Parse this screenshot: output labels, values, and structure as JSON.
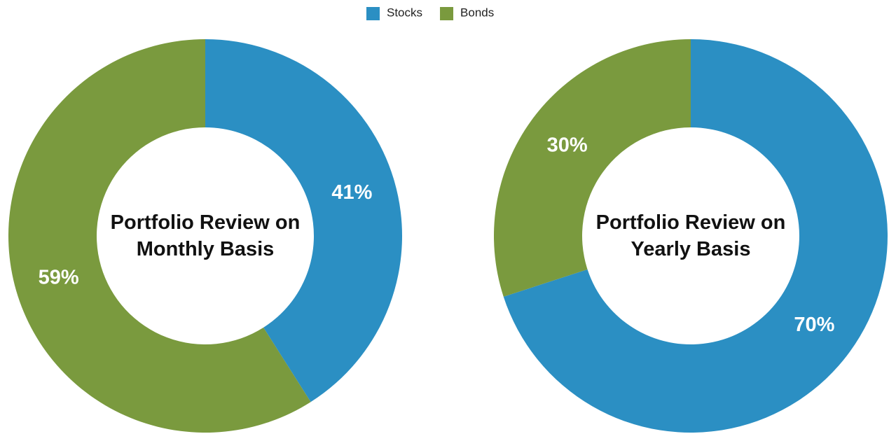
{
  "chart_data": [
    {
      "type": "donut",
      "title": "Portfolio Review on Monthly Basis",
      "categories": [
        "Stocks",
        "Bonds"
      ],
      "values": [
        41,
        59
      ],
      "value_labels": [
        "41%",
        "59%"
      ],
      "colors": [
        "#2b8fc3",
        "#7a9a3e"
      ],
      "legend": "top"
    },
    {
      "type": "donut",
      "title": "Portfolio Review on Yearly Basis",
      "categories": [
        "Stocks",
        "Bonds"
      ],
      "values": [
        70,
        30
      ],
      "value_labels": [
        "70%",
        "30%"
      ],
      "colors": [
        "#2b8fc3",
        "#7a9a3e"
      ]
    }
  ]
}
